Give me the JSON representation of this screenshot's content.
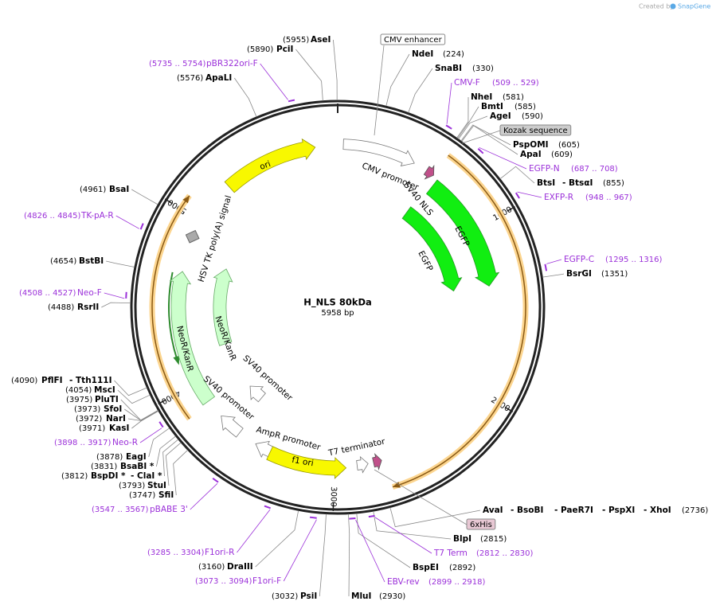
{
  "credit": {
    "prefix": "Created by",
    "brand": "SnapGene"
  },
  "map": {
    "name": "H_NLS 80kDa",
    "size": "5958 bp",
    "ticks": [
      1000,
      2000,
      3000,
      4000,
      5000
    ]
  },
  "features": [
    "CMV promoter",
    "SV40 NLS",
    "EGFP",
    "EGFP",
    "ori",
    "HSV TK poly(A) signal",
    "NeoR/KanR",
    "NeoR/KanR",
    "SV40 promoter",
    "SV40 promoter",
    "AmpR promoter",
    "f1 ori",
    "T7 terminator"
  ],
  "boxed_features": [
    "CMV enhancer",
    "Kozak sequence",
    "6xHis"
  ],
  "sites": [
    {
      "names": [
        "AseI"
      ],
      "position": "(5955)"
    },
    {
      "names": [
        "PciI"
      ],
      "position": "(5890)"
    },
    {
      "names": [
        "ApaLI"
      ],
      "position": "(5576)"
    },
    {
      "names": [
        "NdeI"
      ],
      "position": "(224)"
    },
    {
      "names": [
        "SnaBI"
      ],
      "position": "(330)"
    },
    {
      "names": [
        "NheI"
      ],
      "position": "(581)"
    },
    {
      "names": [
        "BmtI"
      ],
      "position": "(585)"
    },
    {
      "names": [
        "AgeI"
      ],
      "position": "(590)"
    },
    {
      "names": [
        "PspOMI"
      ],
      "position": "(605)"
    },
    {
      "names": [
        "ApaI"
      ],
      "position": "(609)"
    },
    {
      "names": [
        "BtsI",
        "- BtsαI"
      ],
      "position": "(855)"
    },
    {
      "names": [
        "BsrGI"
      ],
      "position": "(1351)"
    },
    {
      "names": [
        "AvaI",
        "- BsoBI",
        "- PaeR7I",
        "- PspXI",
        "- XhoI"
      ],
      "position": "(2736)"
    },
    {
      "names": [
        "BlpI"
      ],
      "position": "(2815)"
    },
    {
      "names": [
        "BspEI"
      ],
      "position": "(2892)"
    },
    {
      "names": [
        "MluI"
      ],
      "position": "(2930)"
    },
    {
      "names": [
        "PsiI"
      ],
      "position": "(3032)"
    },
    {
      "names": [
        "DraIII"
      ],
      "position": "(3160)"
    },
    {
      "names": [
        "SfiI"
      ],
      "position": "(3747)"
    },
    {
      "names": [
        "StuI"
      ],
      "position": "(3793)"
    },
    {
      "names": [
        "BspDI *",
        "- ClaI *"
      ],
      "position": "(3812)"
    },
    {
      "names": [
        "BsaBI *"
      ],
      "position": "(3831)"
    },
    {
      "names": [
        "EagI"
      ],
      "position": "(3878)"
    },
    {
      "names": [
        "KasI"
      ],
      "position": "(3971)"
    },
    {
      "names": [
        "NarI"
      ],
      "position": "(3972)"
    },
    {
      "names": [
        "SfoI"
      ],
      "position": "(3973)"
    },
    {
      "names": [
        "PluTI"
      ],
      "position": "(3975)"
    },
    {
      "names": [
        "MscI"
      ],
      "position": "(4054)"
    },
    {
      "names": [
        "PflFI",
        "- Tth111I"
      ],
      "position": "(4090)"
    },
    {
      "names": [
        "RsrII"
      ],
      "position": "(4488)"
    },
    {
      "names": [
        "BstBI"
      ],
      "position": "(4654)"
    },
    {
      "names": [
        "BsaI"
      ],
      "position": "(4961)"
    }
  ],
  "primers": [
    {
      "name": "pBR322ori-F",
      "range": "(5735 .. 5754)"
    },
    {
      "name": "CMV-F",
      "range": "(509 .. 529)"
    },
    {
      "name": "EGFP-N",
      "range": "(687 .. 708)"
    },
    {
      "name": "EXFP-R",
      "range": "(948 .. 967)"
    },
    {
      "name": "EGFP-C",
      "range": "(1295 .. 1316)"
    },
    {
      "name": "T7 Term",
      "range": "(2812 .. 2830)"
    },
    {
      "name": "EBV-rev",
      "range": "(2899 .. 2918)"
    },
    {
      "name": "F1ori-F",
      "range": "(3073 .. 3094)"
    },
    {
      "name": "F1ori-R",
      "range": "(3285 .. 3304)"
    },
    {
      "name": "pBABE 3'",
      "range": "(3547 .. 3567)"
    },
    {
      "name": "Neo-R",
      "range": "(3898 .. 3917)"
    },
    {
      "name": "Neo-F",
      "range": "(4508 .. 4527)"
    },
    {
      "name": "TK-pA-R",
      "range": "(4826 .. 4845)"
    }
  ]
}
